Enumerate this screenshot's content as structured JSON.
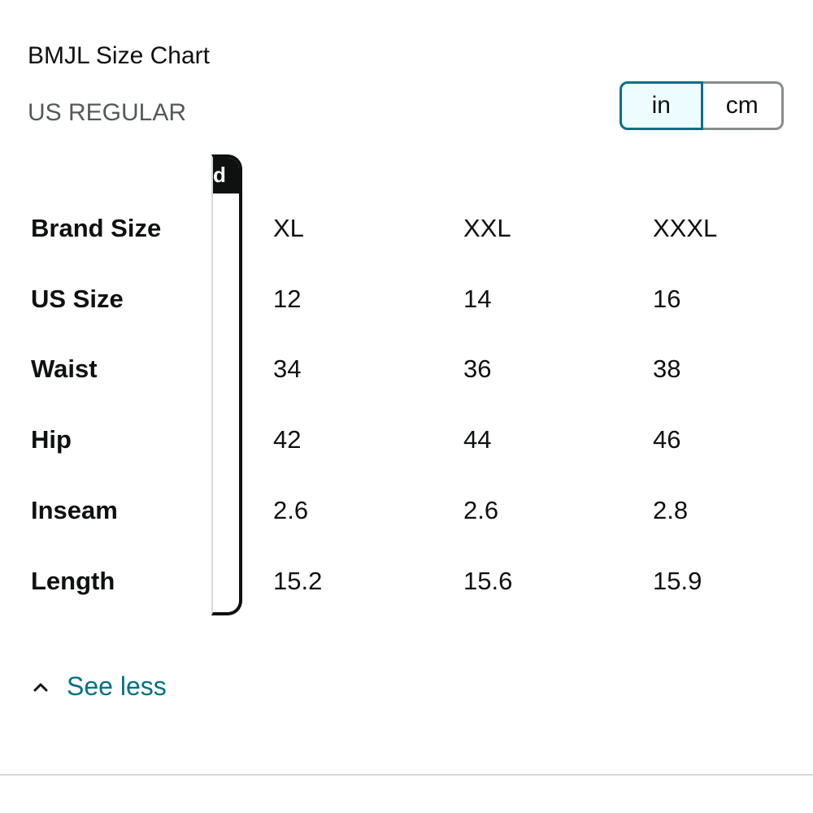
{
  "header": {
    "title": "BMJL Size Chart",
    "region": "US REGULAR"
  },
  "unit_toggle": {
    "options": [
      "in",
      "cm"
    ],
    "selected": "in"
  },
  "sticky_column": {
    "cut_header_text": "d"
  },
  "table": {
    "rows": [
      {
        "label": "Brand Size",
        "values": [
          "XL",
          "XXL",
          "XXXL"
        ]
      },
      {
        "label": "US Size",
        "values": [
          "12",
          "14",
          "16"
        ]
      },
      {
        "label": "Waist",
        "values": [
          "34",
          "36",
          "38"
        ]
      },
      {
        "label": "Hip",
        "values": [
          "42",
          "44",
          "46"
        ]
      },
      {
        "label": "Inseam",
        "values": [
          "2.6",
          "2.6",
          "2.8"
        ]
      },
      {
        "label": "Length",
        "values": [
          "15.2",
          "15.6",
          "15.9"
        ]
      }
    ]
  },
  "footer": {
    "toggle_label": "See less",
    "toggle_icon": "chevron-up-icon"
  },
  "colors": {
    "accent": "#007185",
    "selected_bg": "#edfdff",
    "text": "#0f1111",
    "muted": "#565959"
  }
}
